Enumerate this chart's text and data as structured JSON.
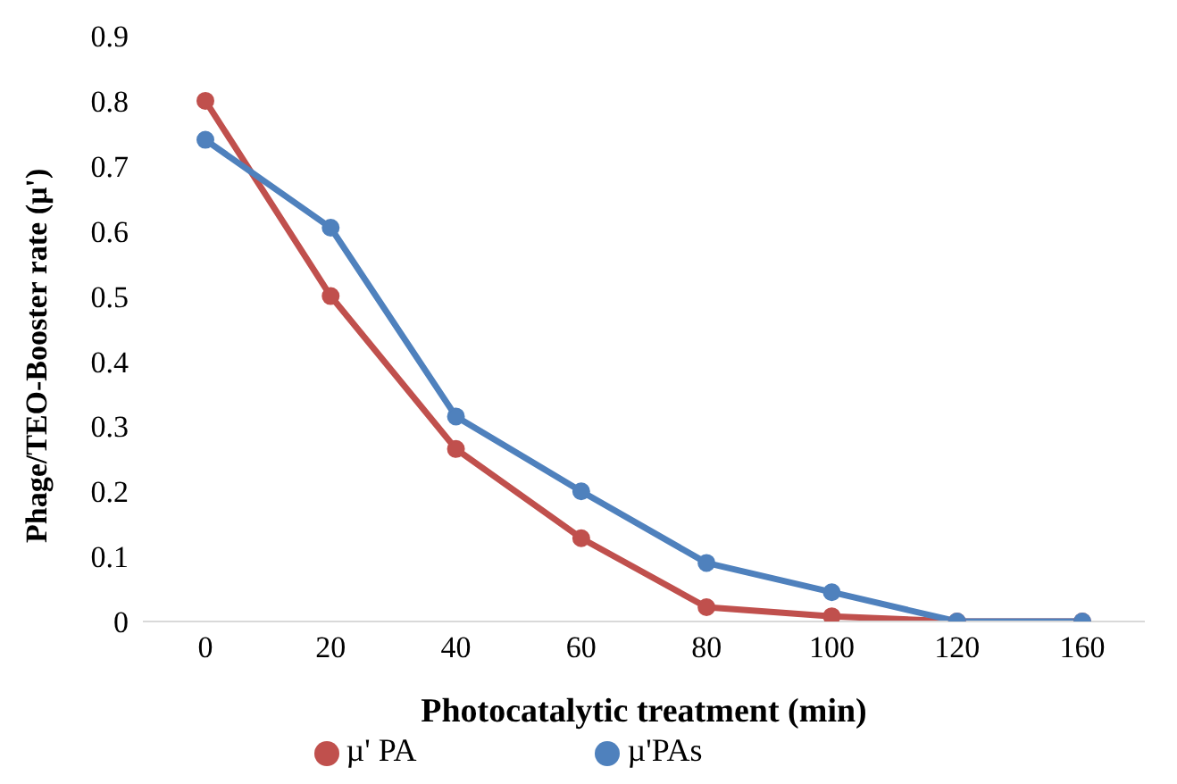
{
  "chart_data": {
    "type": "line",
    "xlabel": "Photocatalytic treatment (min)",
    "ylabel": "Phage/TEO-Booster rate (µ')",
    "categories": [
      "0",
      "20",
      "40",
      "60",
      "80",
      "100",
      "120",
      "160"
    ],
    "series": [
      {
        "name": "µ' PA",
        "color": "#c0504d",
        "values": [
          0.8,
          0.5,
          0.265,
          0.128,
          0.022,
          0.008,
          0,
          0
        ]
      },
      {
        "name": "µ'PAs",
        "color": "#4f81bd",
        "values": [
          0.74,
          0.605,
          0.315,
          0.2,
          0.09,
          0.045,
          0,
          0
        ]
      }
    ],
    "ylim": [
      0,
      0.9
    ],
    "yticks": [
      0,
      0.1,
      0.2,
      0.3,
      0.4,
      0.5,
      0.6,
      0.7,
      0.8,
      0.9
    ],
    "grid": false,
    "legend": "bottom",
    "marker": "circle",
    "line_style": "solid"
  }
}
